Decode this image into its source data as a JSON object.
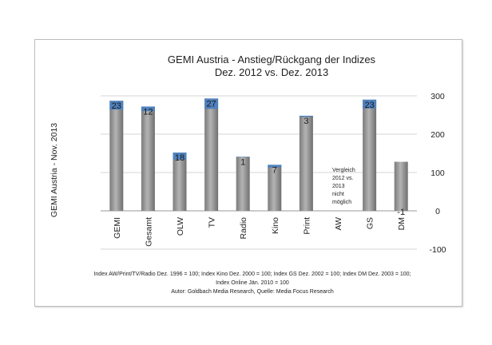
{
  "chart_data": {
    "type": "bar",
    "title_lines": [
      "GEMI Austria - Anstieg/Rückgang der Indizes",
      "Dez. 2012 vs. Dez. 2013"
    ],
    "ylabel": "GEMI Austria - Nov. 2013",
    "ylim": [
      -100,
      300
    ],
    "yticks": [
      -100,
      0,
      100,
      200,
      300
    ],
    "y_axis_side": "right",
    "categories": [
      "GEMI",
      "Gesamt",
      "OLW",
      "TV",
      "Radio",
      "Kino",
      "Print",
      "AW",
      "GS",
      "DM"
    ],
    "values": [
      287,
      272,
      152,
      293,
      141,
      120,
      248,
      null,
      290,
      128
    ],
    "changes": [
      23,
      12,
      18,
      27,
      1,
      7,
      3,
      null,
      23,
      -1
    ],
    "change_labels": [
      "23",
      "12",
      "18",
      "27",
      "1",
      "7",
      "3",
      "",
      "23",
      "-1"
    ],
    "aw_note": [
      "Vergleich",
      "2012 vs.",
      "2013",
      "nicht",
      "möglich"
    ],
    "footnote": [
      "Index AW/Print/TV/Radio Dez. 1996 = 100; Index Kino Dez. 2000 = 100; Index GS Dez. 2002 = 100; Index DM Dez. 2003 = 100;",
      "Index Online Jän. 2010 = 100",
      "Autor: Goldbach Media Research, Quelle: Media Focus Research"
    ],
    "colors": {
      "bar": "#8c8c8c",
      "change": "#4f81bd"
    }
  }
}
